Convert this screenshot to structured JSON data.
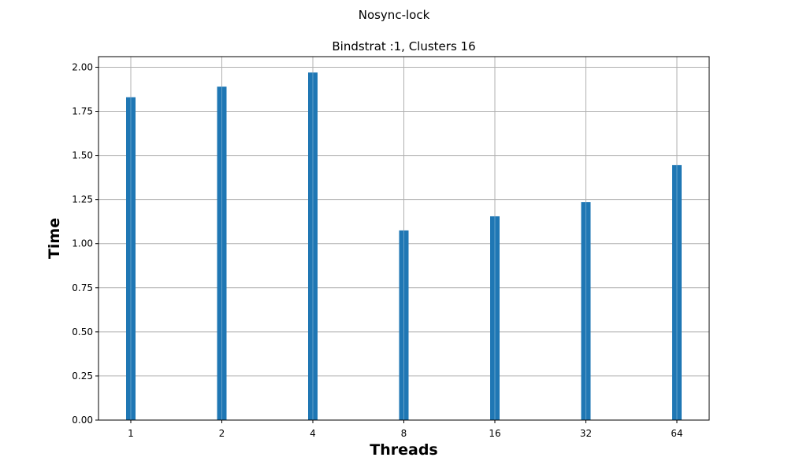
{
  "chart_data": {
    "type": "bar",
    "suptitle": "Nosync-lock",
    "title": "Bindstrat :1, Clusters 16",
    "xlabel": "Threads",
    "ylabel": "Time",
    "categories": [
      "1",
      "2",
      "4",
      "8",
      "16",
      "32",
      "64"
    ],
    "series": [
      {
        "name": "Time",
        "values": [
          1.83,
          1.89,
          1.97,
          1.075,
          1.155,
          1.235,
          1.445
        ]
      }
    ],
    "ylim": [
      0,
      2.06
    ],
    "yticks": [
      0.0,
      0.25,
      0.5,
      0.75,
      1.0,
      1.25,
      1.5,
      1.75,
      2.0
    ],
    "ytick_labels": [
      "0.00",
      "0.25",
      "0.50",
      "0.75",
      "1.00",
      "1.25",
      "1.50",
      "1.75",
      "2.00"
    ],
    "grid": true,
    "bar_color": "#1f77b4",
    "grid_color": "#b0b0b0"
  }
}
